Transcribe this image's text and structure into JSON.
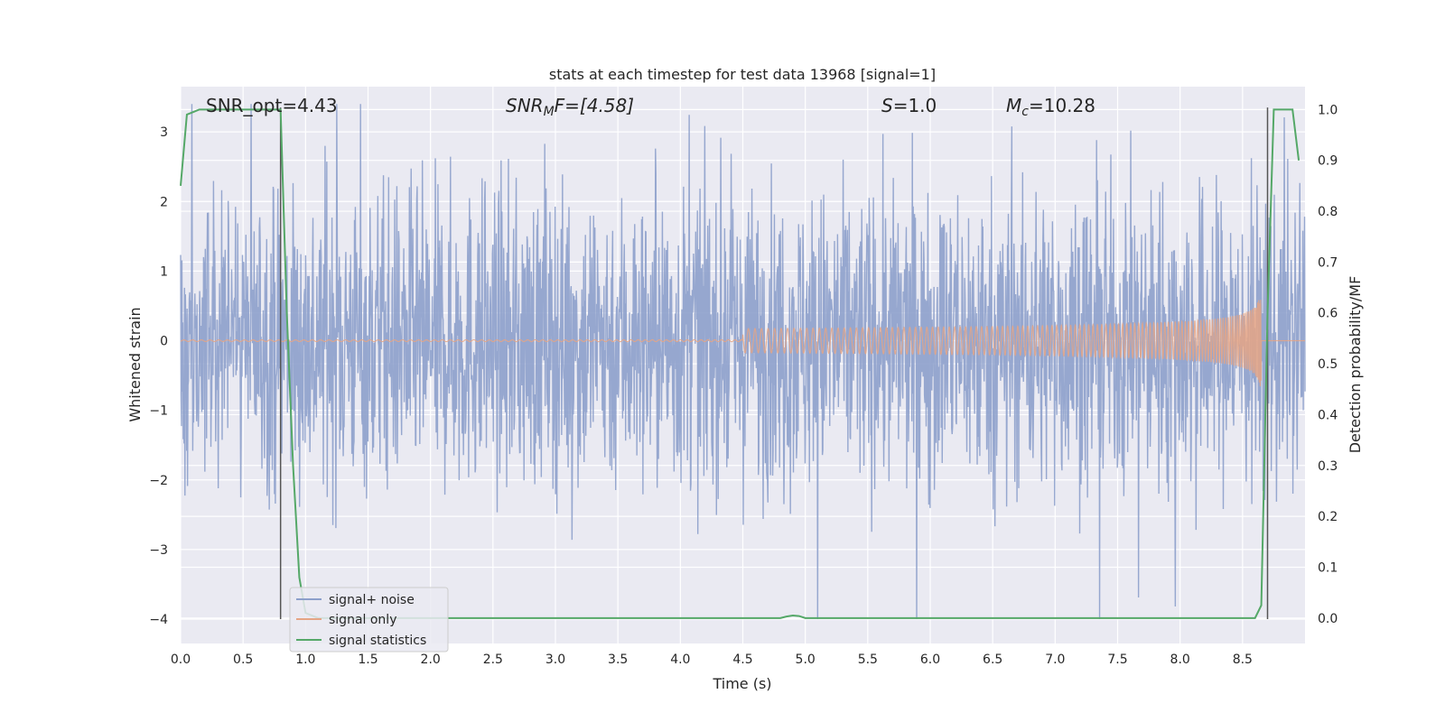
{
  "chart_data": {
    "type": "line",
    "title": "stats at each timestep for test data 13968 [signal=1]",
    "xlabel": "Time (s)",
    "ylabel_left": "Whitened strain",
    "ylabel_right": "Detection probability/MF",
    "xlim": [
      0.0,
      9.0
    ],
    "ylim_left": [
      -4.35,
      3.65
    ],
    "ylim_right": [
      -0.05,
      1.045
    ],
    "x_ticks": [
      0.0,
      0.5,
      1.0,
      1.5,
      2.0,
      2.5,
      3.0,
      3.5,
      4.0,
      4.5,
      5.0,
      5.5,
      6.0,
      6.5,
      7.0,
      7.5,
      8.0,
      8.5
    ],
    "x_tick_labels": [
      "0.0",
      "0.5",
      "1.0",
      "1.5",
      "2.0",
      "2.5",
      "3.0",
      "3.5",
      "4.0",
      "4.5",
      "5.0",
      "5.5",
      "6.0",
      "6.5",
      "7.0",
      "7.5",
      "8.0",
      "8.5"
    ],
    "y_left_ticks": [
      3,
      2,
      1,
      0,
      -1,
      -2,
      -3,
      -4
    ],
    "y_left_tick_labels": [
      "3",
      "2",
      "1",
      "0",
      "−1",
      "−2",
      "−3",
      "−4"
    ],
    "y_right_ticks": [
      1.0,
      0.9,
      0.8,
      0.7,
      0.6,
      0.5,
      0.4,
      0.3,
      0.2,
      0.1,
      0.0
    ],
    "y_right_tick_labels": [
      "1.0",
      "0.9",
      "0.8",
      "0.7",
      "0.6",
      "0.5",
      "0.4",
      "0.3",
      "0.2",
      "0.1",
      "0.0"
    ],
    "grid": true,
    "legend_position": "lower-left",
    "annotations": {
      "snr_opt": "SNR_opt=4.43",
      "snr_mf_base": "SNR",
      "snr_mf_sub": "M",
      "snr_mf_rest": "F=[4.58]",
      "s_base": "S",
      "s_rest": "=1.0",
      "mc_base": "M",
      "mc_sub": "c",
      "mc_rest": "=10.28"
    },
    "vertical_lines_x": [
      0.8,
      8.7
    ],
    "vertical_line_y_range": [
      -4.0,
      3.35
    ],
    "series": [
      {
        "name": "signal+ noise",
        "color": "#8da0cb",
        "kind": "noise",
        "envelope_typical": 1.8,
        "range_observed": [
          -4.0,
          3.4
        ]
      },
      {
        "name": "signal only",
        "color": "#e5a585",
        "kind": "chirp",
        "merger_time": 8.65,
        "peak_amplitude": 0.75,
        "visible_from": 4.5
      },
      {
        "name": "signal statistics",
        "color": "#55a868",
        "axis": "right",
        "x": [
          0.0,
          0.05,
          0.1,
          0.15,
          0.2,
          0.3,
          0.4,
          0.5,
          0.6,
          0.7,
          0.8,
          0.85,
          0.9,
          0.95,
          1.0,
          1.1,
          1.5,
          2.0,
          3.0,
          4.0,
          4.6,
          4.8,
          4.85,
          4.9,
          4.95,
          5.0,
          5.5,
          6.0,
          7.0,
          8.0,
          8.6,
          8.65,
          8.7,
          8.75,
          8.8,
          8.85,
          8.9,
          8.95
        ],
        "y": [
          0.85,
          0.99,
          0.995,
          1.0,
          1.0,
          1.0,
          1.0,
          1.0,
          1.0,
          1.0,
          1.0,
          0.6,
          0.3,
          0.08,
          0.01,
          0.0,
          0.0,
          0.0,
          0.0,
          0.0,
          0.0,
          0.0,
          0.003,
          0.005,
          0.004,
          0.0,
          0.0,
          0.0,
          0.0,
          0.0,
          0.0,
          0.025,
          0.6,
          1.0,
          1.0,
          1.0,
          1.0,
          0.9
        ]
      }
    ]
  }
}
